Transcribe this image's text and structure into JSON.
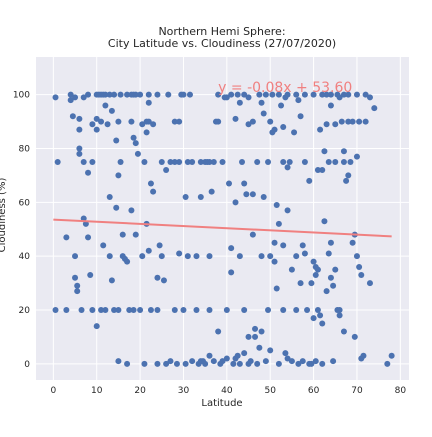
{
  "chart_data": {
    "type": "scatter",
    "title": "Northern Hemi Sphere:",
    "subtitle": "City Latitude vs. Cloudiness (27/07/2020)",
    "xlabel": "Latitude",
    "ylabel": "Cloudiness (%)",
    "xlim": [
      -4,
      82
    ],
    "ylim": [
      -6,
      114
    ],
    "xticks": [
      0,
      10,
      20,
      30,
      40,
      50,
      60,
      70,
      80
    ],
    "yticks": [
      0,
      20,
      40,
      60,
      80,
      100
    ],
    "grid": true,
    "regression": {
      "equation": "y = -0.08x + 53.60",
      "slope": -0.08,
      "intercept": 53.6,
      "x_range": [
        0,
        78
      ]
    },
    "colors": {
      "background": "#EAEAF2",
      "grid": "#FFFFFF",
      "points": "#4C72B0",
      "line": "#F08080",
      "text": "#262626"
    },
    "points": [
      [
        0.5,
        99
      ],
      [
        0.5,
        20
      ],
      [
        1,
        75
      ],
      [
        3,
        20
      ],
      [
        3,
        47
      ],
      [
        4,
        100
      ],
      [
        4,
        98
      ],
      [
        4.5,
        92
      ],
      [
        5,
        99
      ],
      [
        5,
        40
      ],
      [
        5,
        32
      ],
      [
        5.5,
        29
      ],
      [
        5.5,
        27
      ],
      [
        6,
        91
      ],
      [
        6,
        80
      ],
      [
        6,
        78
      ],
      [
        6,
        87
      ],
      [
        6.5,
        20
      ],
      [
        7,
        75
      ],
      [
        7,
        54
      ],
      [
        7.5,
        52
      ],
      [
        8,
        71
      ],
      [
        8,
        100
      ],
      [
        8,
        47
      ],
      [
        8.5,
        33
      ],
      [
        9,
        89
      ],
      [
        9,
        20
      ],
      [
        9,
        75
      ],
      [
        10,
        100
      ],
      [
        10,
        91
      ],
      [
        10,
        87
      ],
      [
        10,
        14
      ],
      [
        10.5,
        100
      ],
      [
        11,
        100
      ],
      [
        11,
        20
      ],
      [
        11.5,
        100
      ],
      [
        11.5,
        44
      ],
      [
        12,
        96
      ],
      [
        12,
        100
      ],
      [
        12,
        20
      ],
      [
        12.5,
        89
      ],
      [
        13,
        100
      ],
      [
        13,
        62
      ],
      [
        13,
        40
      ],
      [
        13.5,
        94
      ],
      [
        13.5,
        31
      ],
      [
        14,
        100
      ],
      [
        14,
        20
      ],
      [
        14.5,
        83
      ],
      [
        14.5,
        58
      ],
      [
        15,
        70
      ],
      [
        15,
        20
      ],
      [
        15,
        1
      ],
      [
        15.5,
        100
      ],
      [
        15.5,
        75
      ],
      [
        16,
        48
      ],
      [
        16,
        40
      ],
      [
        16.5,
        39
      ],
      [
        17,
        100
      ],
      [
        17,
        38
      ],
      [
        17,
        0
      ],
      [
        17.5,
        20
      ],
      [
        18,
        100
      ],
      [
        18,
        90
      ],
      [
        18,
        57
      ],
      [
        18.5,
        100
      ],
      [
        18.5,
        84
      ],
      [
        18.5,
        20
      ],
      [
        19,
        82
      ],
      [
        19,
        48
      ],
      [
        19.5,
        78
      ],
      [
        20,
        100
      ],
      [
        20,
        20
      ],
      [
        20.5,
        89
      ],
      [
        20.5,
        40
      ],
      [
        21,
        75
      ],
      [
        21,
        0
      ],
      [
        21.5,
        86
      ],
      [
        21.5,
        52
      ],
      [
        22,
        100
      ],
      [
        22,
        90
      ],
      [
        22,
        42
      ],
      [
        22.5,
        67
      ],
      [
        22.5,
        20
      ],
      [
        23,
        64
      ],
      [
        23,
        89
      ],
      [
        24,
        100
      ],
      [
        24,
        20
      ],
      [
        24,
        0
      ],
      [
        24.5,
        44
      ],
      [
        25,
        75
      ],
      [
        25,
        40
      ],
      [
        25.5,
        31
      ],
      [
        26,
        72
      ],
      [
        26,
        0
      ],
      [
        27,
        75
      ],
      [
        27,
        1
      ],
      [
        28,
        75
      ],
      [
        28,
        90
      ],
      [
        28,
        20
      ],
      [
        28.5,
        0
      ],
      [
        29,
        90
      ],
      [
        29,
        75
      ],
      [
        29,
        41
      ],
      [
        29.5,
        100
      ],
      [
        30,
        100
      ],
      [
        30,
        20
      ],
      [
        30.5,
        62
      ],
      [
        30.5,
        0
      ],
      [
        31,
        40
      ],
      [
        31,
        75
      ],
      [
        32,
        1
      ],
      [
        32,
        75
      ],
      [
        33,
        40
      ],
      [
        33,
        20
      ],
      [
        33.5,
        0
      ],
      [
        34,
        75
      ],
      [
        34,
        62
      ],
      [
        34.5,
        1
      ],
      [
        35,
        75
      ],
      [
        35,
        0
      ],
      [
        35.5,
        75
      ],
      [
        36,
        40
      ],
      [
        36,
        20
      ],
      [
        36,
        3
      ],
      [
        36.5,
        64
      ],
      [
        37,
        75
      ],
      [
        37,
        1
      ],
      [
        37.5,
        90
      ],
      [
        38,
        90
      ],
      [
        38,
        12
      ],
      [
        38.5,
        0
      ],
      [
        39,
        75
      ],
      [
        39,
        1
      ],
      [
        39.5,
        99
      ],
      [
        40,
        20
      ],
      [
        40,
        2
      ],
      [
        40.5,
        67
      ],
      [
        41,
        100
      ],
      [
        41,
        43
      ],
      [
        41,
        34
      ],
      [
        41.5,
        0
      ],
      [
        42,
        60
      ],
      [
        42,
        91
      ],
      [
        42,
        2
      ],
      [
        42.5,
        100
      ],
      [
        42.5,
        3
      ],
      [
        43,
        97
      ],
      [
        43,
        40
      ],
      [
        43,
        0
      ],
      [
        43.5,
        75
      ],
      [
        44,
        100
      ],
      [
        44,
        20
      ],
      [
        44,
        4
      ],
      [
        44.5,
        63
      ],
      [
        45,
        10
      ],
      [
        45,
        89
      ],
      [
        45,
        0
      ],
      [
        45.5,
        1
      ],
      [
        46,
        63
      ],
      [
        46,
        90
      ],
      [
        46,
        48
      ],
      [
        46.5,
        10
      ],
      [
        47,
        75
      ],
      [
        47,
        0
      ],
      [
        47.5,
        100
      ],
      [
        47.5,
        6
      ],
      [
        48,
        97
      ],
      [
        48,
        12
      ],
      [
        48.5,
        93
      ],
      [
        48.5,
        62
      ],
      [
        49,
        100
      ],
      [
        49,
        1
      ],
      [
        49.5,
        75
      ],
      [
        49.5,
        20
      ],
      [
        50,
        90
      ],
      [
        50,
        40
      ],
      [
        50,
        5
      ],
      [
        50.5,
        100
      ],
      [
        50.5,
        86
      ],
      [
        51,
        87
      ],
      [
        51,
        45
      ],
      [
        51,
        38
      ],
      [
        51.5,
        59
      ],
      [
        51.5,
        28
      ],
      [
        52,
        100
      ],
      [
        52,
        52
      ],
      [
        52,
        0
      ],
      [
        52.5,
        96
      ],
      [
        53,
        44
      ],
      [
        53,
        75
      ],
      [
        53,
        20
      ],
      [
        53.5,
        99
      ],
      [
        54,
        100
      ],
      [
        54,
        57
      ],
      [
        54,
        2
      ],
      [
        54.5,
        75
      ],
      [
        55,
        35
      ],
      [
        55,
        1
      ],
      [
        55.5,
        86
      ],
      [
        56,
        100
      ],
      [
        56,
        40
      ],
      [
        56,
        20
      ],
      [
        56.5,
        0
      ],
      [
        57,
        92
      ],
      [
        57,
        30
      ],
      [
        57.5,
        1
      ],
      [
        58,
        75
      ],
      [
        58,
        100
      ],
      [
        58,
        41
      ],
      [
        58.5,
        20
      ],
      [
        59,
        68
      ],
      [
        59,
        0
      ],
      [
        59.5,
        30
      ],
      [
        60,
        100
      ],
      [
        60,
        38
      ],
      [
        60,
        17
      ],
      [
        60.5,
        33
      ],
      [
        60.5,
        1
      ],
      [
        61,
        72
      ],
      [
        61,
        20
      ],
      [
        61,
        35
      ],
      [
        61.5,
        87
      ],
      [
        61.5,
        18
      ],
      [
        62,
        100
      ],
      [
        62,
        72
      ],
      [
        62,
        15
      ],
      [
        62.5,
        79
      ],
      [
        62.5,
        53
      ],
      [
        63,
        100
      ],
      [
        63,
        89
      ],
      [
        63,
        27
      ],
      [
        63.5,
        75
      ],
      [
        63.5,
        41
      ],
      [
        64,
        100
      ],
      [
        64,
        45
      ],
      [
        64,
        32
      ],
      [
        64.5,
        29
      ],
      [
        64.5,
        1
      ],
      [
        65,
        89
      ],
      [
        65,
        75
      ],
      [
        65,
        35
      ],
      [
        65.5,
        100
      ],
      [
        65.5,
        20
      ],
      [
        66,
        99
      ],
      [
        66,
        18
      ],
      [
        66.5,
        90
      ],
      [
        67,
        100
      ],
      [
        67,
        75
      ],
      [
        67,
        12
      ],
      [
        67.5,
        68
      ],
      [
        68,
        90
      ],
      [
        68,
        100
      ],
      [
        68,
        70
      ],
      [
        68.5,
        75
      ],
      [
        69,
        90
      ],
      [
        69,
        45
      ],
      [
        69.5,
        48
      ],
      [
        70,
        100
      ],
      [
        70,
        77
      ],
      [
        70,
        40
      ],
      [
        70.5,
        90
      ],
      [
        70.5,
        36
      ],
      [
        71,
        33
      ],
      [
        71,
        2
      ],
      [
        71.5,
        3
      ],
      [
        72,
        90
      ],
      [
        72,
        100
      ],
      [
        73,
        99
      ],
      [
        73,
        30
      ],
      [
        74,
        95
      ],
      [
        77,
        0
      ],
      [
        78,
        3
      ],
      [
        69.5,
        10
      ],
      [
        66,
        20
      ],
      [
        40,
        99
      ],
      [
        38,
        100
      ],
      [
        59.5,
        0
      ],
      [
        46.5,
        13
      ],
      [
        62,
        0
      ],
      [
        53,
        88
      ],
      [
        57.5,
        44
      ],
      [
        60.5,
        36
      ],
      [
        64,
        96
      ],
      [
        24,
        32
      ],
      [
        22,
        97
      ],
      [
        31.5,
        100
      ],
      [
        36,
        75
      ],
      [
        34,
        1
      ],
      [
        44,
        67
      ],
      [
        48,
        40
      ],
      [
        15,
        90
      ],
      [
        11,
        90
      ],
      [
        21.5,
        90
      ],
      [
        54,
        73
      ],
      [
        56.5,
        98
      ],
      [
        67,
        79
      ],
      [
        53.5,
        4
      ],
      [
        45,
        99
      ],
      [
        26.5,
        100
      ],
      [
        19,
        100
      ],
      [
        7,
        99
      ]
    ]
  }
}
